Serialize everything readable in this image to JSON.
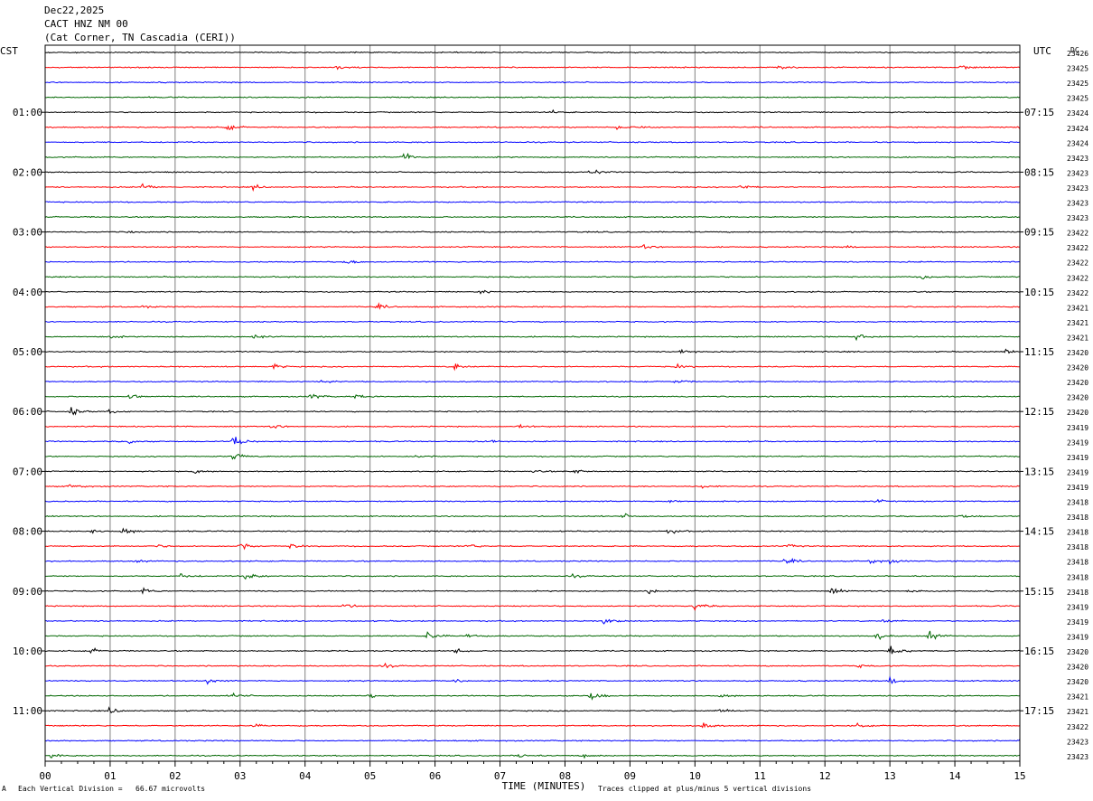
{
  "header": {
    "date": "Dec22,2025",
    "station": "CACT HNZ NM 00",
    "location": "(Cat Corner, TN Cascadia (CERI))"
  },
  "left_zone": "CST",
  "right_zone": "UTC",
  "dc_label": "DC",
  "xlabel": "TIME (MINUTES)",
  "footer": {
    "scale_note": "Each Vertical Division =   66.67 microvolts",
    "clip_note": "Traces clipped at plus/minus 5 vertical divisions",
    "corner_mark": "A"
  },
  "chart_data": {
    "type": "line",
    "title": "CACT HNZ NM 00",
    "xlabel": "TIME (MINUTES)",
    "xlim": [
      0,
      15
    ],
    "x_ticks": [
      "00",
      "01",
      "02",
      "03",
      "04",
      "05",
      "06",
      "07",
      "08",
      "09",
      "10",
      "11",
      "12",
      "13",
      "14",
      "15"
    ],
    "trace_count": 48,
    "trace_colors": [
      "#000000",
      "#ff0000",
      "#0000ff",
      "#006600"
    ],
    "cst_hour_labels": [
      {
        "trace": 4,
        "label": "01:00"
      },
      {
        "trace": 8,
        "label": "02:00"
      },
      {
        "trace": 12,
        "label": "03:00"
      },
      {
        "trace": 16,
        "label": "04:00"
      },
      {
        "trace": 20,
        "label": "05:00"
      },
      {
        "trace": 24,
        "label": "06:00"
      },
      {
        "trace": 28,
        "label": "07:00"
      },
      {
        "trace": 32,
        "label": "08:00"
      },
      {
        "trace": 36,
        "label": "09:00"
      },
      {
        "trace": 40,
        "label": "10:00"
      },
      {
        "trace": 44,
        "label": "11:00"
      }
    ],
    "utc_hour_labels": [
      {
        "trace": 4,
        "label": "07:15"
      },
      {
        "trace": 8,
        "label": "08:15"
      },
      {
        "trace": 12,
        "label": "09:15"
      },
      {
        "trace": 16,
        "label": "10:15"
      },
      {
        "trace": 20,
        "label": "11:15"
      },
      {
        "trace": 24,
        "label": "12:15"
      },
      {
        "trace": 28,
        "label": "13:15"
      },
      {
        "trace": 32,
        "label": "14:15"
      },
      {
        "trace": 36,
        "label": "15:15"
      },
      {
        "trace": 40,
        "label": "16:15"
      },
      {
        "trace": 44,
        "label": "17:15"
      }
    ],
    "dc_values": [
      "23426",
      "23425",
      "23425",
      "23425",
      "23424",
      "23424",
      "23424",
      "23423",
      "23423",
      "23423",
      "23423",
      "23423",
      "23422",
      "23422",
      "23422",
      "23422",
      "23422",
      "23421",
      "23421",
      "23421",
      "23420",
      "23420",
      "23420",
      "23420",
      "23420",
      "23419",
      "23419",
      "23419",
      "23419",
      "23419",
      "23418",
      "23418",
      "23418",
      "23418",
      "23418",
      "23418",
      "23418",
      "23419",
      "23419",
      "23419",
      "23420",
      "23420",
      "23420",
      "23421",
      "23421",
      "23422",
      "23423",
      "23423"
    ],
    "events": [
      {
        "trace": 1,
        "minute": 4.5,
        "amp": 1.4
      },
      {
        "trace": 1,
        "minute": 11.3,
        "amp": 1.4
      },
      {
        "trace": 1,
        "minute": 14.1,
        "amp": 1.8
      },
      {
        "trace": 4,
        "minute": 7.8,
        "amp": 1.0
      },
      {
        "trace": 5,
        "minute": 2.8,
        "amp": 1.8
      },
      {
        "trace": 5,
        "minute": 8.8,
        "amp": 1.2
      },
      {
        "trace": 5,
        "minute": 9.2,
        "amp": 1.0
      },
      {
        "trace": 5,
        "minute": 15.0,
        "amp": 1.2
      },
      {
        "trace": 7,
        "minute": 5.5,
        "amp": 3.2
      },
      {
        "trace": 8,
        "minute": 8.4,
        "amp": 2.0
      },
      {
        "trace": 9,
        "minute": 1.5,
        "amp": 2.0
      },
      {
        "trace": 9,
        "minute": 3.2,
        "amp": 1.4
      },
      {
        "trace": 9,
        "minute": 10.7,
        "amp": 1.8
      },
      {
        "trace": 12,
        "minute": 1.3,
        "amp": 0.8
      },
      {
        "trace": 13,
        "minute": 9.2,
        "amp": 1.2
      },
      {
        "trace": 13,
        "minute": 12.3,
        "amp": 0.8
      },
      {
        "trace": 14,
        "minute": 4.6,
        "amp": 1.8
      },
      {
        "trace": 15,
        "minute": 13.5,
        "amp": 1.6
      },
      {
        "trace": 16,
        "minute": 6.7,
        "amp": 1.4
      },
      {
        "trace": 17,
        "minute": 5.1,
        "amp": 1.6
      },
      {
        "trace": 17,
        "minute": 1.5,
        "amp": 0.8
      },
      {
        "trace": 19,
        "minute": 1.0,
        "amp": 1.0
      },
      {
        "trace": 19,
        "minute": 3.2,
        "amp": 1.6
      },
      {
        "trace": 19,
        "minute": 12.5,
        "amp": 2.6
      },
      {
        "trace": 20,
        "minute": 9.8,
        "amp": 1.2
      },
      {
        "trace": 20,
        "minute": 14.8,
        "amp": 1.6
      },
      {
        "trace": 21,
        "minute": 3.5,
        "amp": 1.8
      },
      {
        "trace": 21,
        "minute": 6.3,
        "amp": 2.2
      },
      {
        "trace": 21,
        "minute": 9.7,
        "amp": 1.8
      },
      {
        "trace": 22,
        "minute": 4.2,
        "amp": 1.4
      },
      {
        "trace": 22,
        "minute": 9.7,
        "amp": 1.0
      },
      {
        "trace": 23,
        "minute": 1.3,
        "amp": 2.2
      },
      {
        "trace": 23,
        "minute": 4.1,
        "amp": 1.8
      },
      {
        "trace": 23,
        "minute": 4.8,
        "amp": 1.2
      },
      {
        "trace": 24,
        "minute": 0.4,
        "amp": 2.6
      },
      {
        "trace": 24,
        "minute": 1.0,
        "amp": 1.0
      },
      {
        "trace": 25,
        "minute": 3.5,
        "amp": 1.2
      },
      {
        "trace": 25,
        "minute": 7.3,
        "amp": 1.8
      },
      {
        "trace": 26,
        "minute": 1.3,
        "amp": 1.4
      },
      {
        "trace": 26,
        "minute": 2.9,
        "amp": 4.0
      },
      {
        "trace": 26,
        "minute": 6.8,
        "amp": 1.2
      },
      {
        "trace": 27,
        "minute": 2.9,
        "amp": 2.6
      },
      {
        "trace": 27,
        "minute": 5.7,
        "amp": 1.2
      },
      {
        "trace": 28,
        "minute": 2.3,
        "amp": 1.4
      },
      {
        "trace": 28,
        "minute": 8.1,
        "amp": 1.6
      },
      {
        "trace": 28,
        "minute": 7.5,
        "amp": 1.0
      },
      {
        "trace": 29,
        "minute": 0.4,
        "amp": 1.8
      },
      {
        "trace": 29,
        "minute": 10.1,
        "amp": 1.0
      },
      {
        "trace": 30,
        "minute": 9.6,
        "amp": 1.4
      },
      {
        "trace": 30,
        "minute": 12.8,
        "amp": 1.0
      },
      {
        "trace": 31,
        "minute": 8.9,
        "amp": 1.4
      },
      {
        "trace": 31,
        "minute": 14.1,
        "amp": 1.2
      },
      {
        "trace": 32,
        "minute": 1.2,
        "amp": 2.2
      },
      {
        "trace": 32,
        "minute": 9.6,
        "amp": 1.4
      },
      {
        "trace": 32,
        "minute": 0.7,
        "amp": 1.2
      },
      {
        "trace": 33,
        "minute": 1.7,
        "amp": 1.2
      },
      {
        "trace": 33,
        "minute": 3.0,
        "amp": 2.4
      },
      {
        "trace": 33,
        "minute": 3.8,
        "amp": 1.6
      },
      {
        "trace": 33,
        "minute": 6.5,
        "amp": 1.4
      },
      {
        "trace": 33,
        "minute": 11.4,
        "amp": 1.2
      },
      {
        "trace": 34,
        "minute": 1.4,
        "amp": 0.8
      },
      {
        "trace": 34,
        "minute": 11.4,
        "amp": 2.0
      },
      {
        "trace": 34,
        "minute": 12.7,
        "amp": 1.6
      },
      {
        "trace": 34,
        "minute": 13.0,
        "amp": 1.0
      },
      {
        "trace": 35,
        "minute": 2.1,
        "amp": 1.6
      },
      {
        "trace": 35,
        "minute": 3.1,
        "amp": 2.4
      },
      {
        "trace": 35,
        "minute": 8.1,
        "amp": 1.0
      },
      {
        "trace": 36,
        "minute": 1.5,
        "amp": 1.6
      },
      {
        "trace": 36,
        "minute": 9.3,
        "amp": 1.8
      },
      {
        "trace": 36,
        "minute": 12.1,
        "amp": 2.2
      },
      {
        "trace": 36,
        "minute": 13.3,
        "amp": 1.4
      },
      {
        "trace": 37,
        "minute": 4.6,
        "amp": 1.6
      },
      {
        "trace": 37,
        "minute": 10.0,
        "amp": 2.2
      },
      {
        "trace": 38,
        "minute": 8.6,
        "amp": 2.2
      },
      {
        "trace": 38,
        "minute": 12.9,
        "amp": 1.2
      },
      {
        "trace": 39,
        "minute": 5.9,
        "amp": 2.8
      },
      {
        "trace": 39,
        "minute": 6.5,
        "amp": 1.4
      },
      {
        "trace": 39,
        "minute": 12.8,
        "amp": 2.0
      },
      {
        "trace": 39,
        "minute": 13.6,
        "amp": 3.0
      },
      {
        "trace": 40,
        "minute": 0.7,
        "amp": 1.6
      },
      {
        "trace": 40,
        "minute": 6.3,
        "amp": 1.8
      },
      {
        "trace": 40,
        "minute": 13.0,
        "amp": 4.5
      },
      {
        "trace": 41,
        "minute": 5.2,
        "amp": 1.4
      },
      {
        "trace": 41,
        "minute": 12.5,
        "amp": 1.0
      },
      {
        "trace": 42,
        "minute": 2.5,
        "amp": 1.4
      },
      {
        "trace": 42,
        "minute": 6.3,
        "amp": 1.0
      },
      {
        "trace": 42,
        "minute": 13.0,
        "amp": 2.2
      },
      {
        "trace": 43,
        "minute": 2.9,
        "amp": 1.8
      },
      {
        "trace": 43,
        "minute": 5.0,
        "amp": 1.2
      },
      {
        "trace": 43,
        "minute": 8.4,
        "amp": 3.0
      },
      {
        "trace": 43,
        "minute": 10.4,
        "amp": 1.2
      },
      {
        "trace": 44,
        "minute": 1.0,
        "amp": 2.0
      },
      {
        "trace": 44,
        "minute": 10.4,
        "amp": 1.6
      },
      {
        "trace": 45,
        "minute": 3.2,
        "amp": 1.0
      },
      {
        "trace": 45,
        "minute": 10.1,
        "amp": 2.4
      },
      {
        "trace": 45,
        "minute": 12.5,
        "amp": 1.0
      },
      {
        "trace": 46,
        "minute": 15.0,
        "amp": 1.0
      },
      {
        "trace": 47,
        "minute": 0.1,
        "amp": 1.2
      },
      {
        "trace": 47,
        "minute": 7.3,
        "amp": 1.8
      },
      {
        "trace": 47,
        "minute": 8.3,
        "amp": 1.2
      }
    ]
  }
}
